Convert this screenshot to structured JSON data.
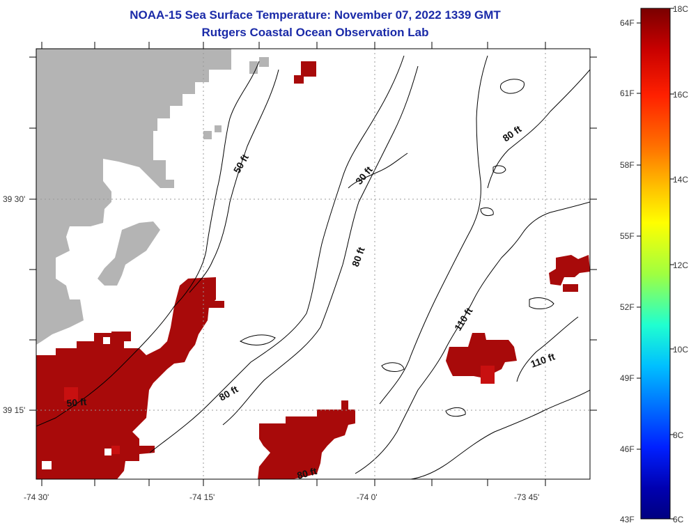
{
  "title_line1": "NOAA-15 Sea Surface Temperature:  November 07, 2022 1339 GMT",
  "title_line2": "Rutgers Coastal Ocean Observation Lab",
  "latitude_labels": [
    "39 30'",
    "39 15'"
  ],
  "longitude_labels": [
    "-74 30'",
    "-74 15'",
    "-74 0'",
    "-73 45'"
  ],
  "contour_labels": [
    "50 ft",
    "30 ft",
    "80 ft",
    "80 ft",
    "110 ft",
    "110 ft",
    "80 ft",
    "50 ft",
    "80 ft"
  ],
  "colorbar": {
    "fahrenheit_labels": [
      "64F",
      "61F",
      "58F",
      "55F",
      "52F",
      "49F",
      "46F",
      "43F"
    ],
    "celsius_labels": [
      "18C",
      "16C",
      "14C",
      "12C",
      "10C",
      "8C",
      "6C"
    ],
    "gradient_colors": [
      "#7a0000",
      "#c80000",
      "#ff2000",
      "#ff7000",
      "#ffc000",
      "#ffff00",
      "#a0ff40",
      "#20ffd0",
      "#00c0ff",
      "#0070ff",
      "#0020ff",
      "#0000b0",
      "#000080"
    ]
  },
  "colors": {
    "land": "#b4b4b4",
    "warm_sst": "#a80a0a",
    "warmer_sst": "#c81010",
    "title": "#1a2aa8"
  }
}
